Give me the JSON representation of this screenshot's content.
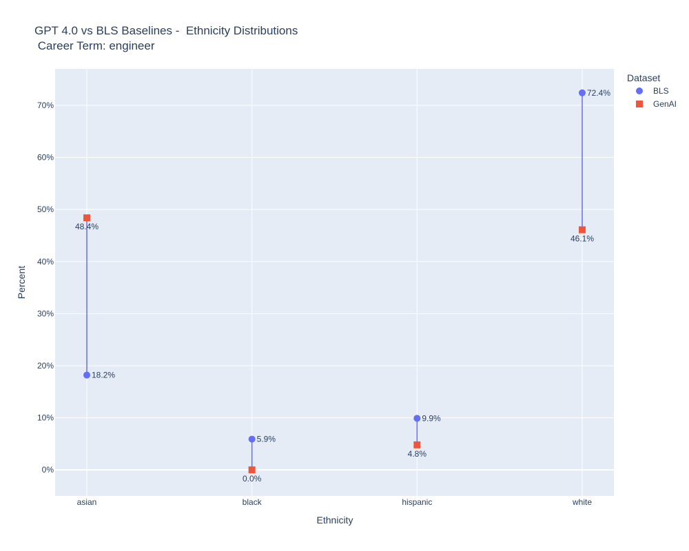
{
  "title_line1": "GPT 4.0 vs BLS Baselines -  Ethnicity Distributions",
  "title_line2": " Career Term: engineer",
  "legend": {
    "title": "Dataset",
    "items": [
      {
        "label": "BLS",
        "symbol": "circle",
        "color": "#636efa"
      },
      {
        "label": "GenAI",
        "symbol": "square",
        "color": "#ef553b"
      }
    ]
  },
  "chart_data": {
    "type": "scatter",
    "title": "GPT 4.0 vs BLS Baselines -  Ethnicity Distributions\n Career Term: engineer",
    "xlabel": "Ethnicity",
    "ylabel": "Percent",
    "categories": [
      "asian",
      "black",
      "hispanic",
      "white"
    ],
    "ylim": [
      -5,
      77
    ],
    "yticks": [
      0,
      10,
      20,
      30,
      40,
      50,
      60,
      70
    ],
    "ytick_labels": [
      "0%",
      "10%",
      "20%",
      "30%",
      "40%",
      "50%",
      "60%",
      "70%"
    ],
    "grid": true,
    "legend_position": "top-right",
    "connector_color": "#636efa",
    "series": [
      {
        "name": "BLS",
        "color": "#636efa",
        "symbol": "circle",
        "values": [
          18.2,
          5.9,
          9.9,
          72.4
        ],
        "labels": [
          "18.2%",
          "5.9%",
          "9.9%",
          "72.4%"
        ]
      },
      {
        "name": "GenAI",
        "color": "#ef553b",
        "symbol": "square",
        "values": [
          48.4,
          0.0,
          4.8,
          46.1
        ],
        "labels": [
          "48.4%",
          "0.0%",
          "4.8%",
          "46.1%"
        ]
      }
    ]
  }
}
